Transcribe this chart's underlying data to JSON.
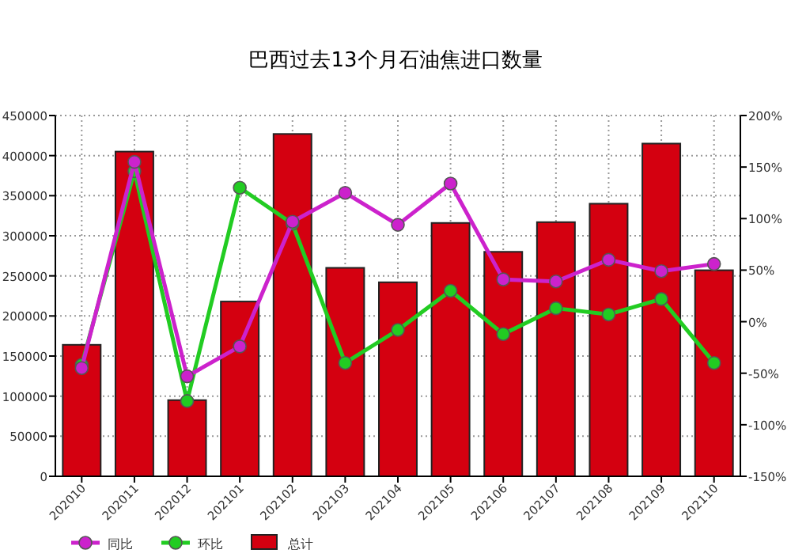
{
  "chart_data": {
    "type": "bar",
    "title": "巴西过去13个月石油焦进口数量",
    "categories": [
      "202010",
      "202011",
      "202012",
      "202101",
      "202102",
      "202103",
      "202104",
      "202105",
      "202106",
      "202107",
      "202108",
      "202109",
      "202110"
    ],
    "series": [
      {
        "name": "同比",
        "type": "line",
        "axis": "y2",
        "color": "#cc22cc",
        "marker": "circle",
        "values": [
          -45,
          155,
          -53,
          -24,
          97,
          125,
          94,
          134,
          41,
          39,
          60,
          49,
          56
        ]
      },
      {
        "name": "环比",
        "type": "line",
        "axis": "y2",
        "color": "#22cc22",
        "marker": "circle",
        "values": [
          -42,
          146,
          -77,
          130,
          95,
          -40,
          -8,
          30,
          -12,
          13,
          7,
          22,
          -40
        ]
      },
      {
        "name": "总计",
        "color": "#d40010",
        "values": [
          164000,
          405000,
          95000,
          218000,
          427000,
          260000,
          242000,
          316000,
          280000,
          317000,
          340000,
          415000,
          257000
        ]
      }
    ],
    "ylim": [
      0,
      450000
    ],
    "yticks": [
      0,
      50000,
      100000,
      150000,
      200000,
      250000,
      300000,
      350000,
      400000,
      450000
    ],
    "y2lim": [
      -150,
      200
    ],
    "y2ticks": [
      {
        "value": -150,
        "label": "-150%"
      },
      {
        "value": -100,
        "label": "-100%"
      },
      {
        "value": -50,
        "label": "-50%"
      },
      {
        "value": 0,
        "label": "0%"
      },
      {
        "value": 50,
        "label": "50%"
      },
      {
        "value": 100,
        "label": "100%"
      },
      {
        "value": 150,
        "label": "150%"
      },
      {
        "value": 200,
        "label": "200%"
      }
    ],
    "grid": true,
    "legend": "bottom left"
  }
}
